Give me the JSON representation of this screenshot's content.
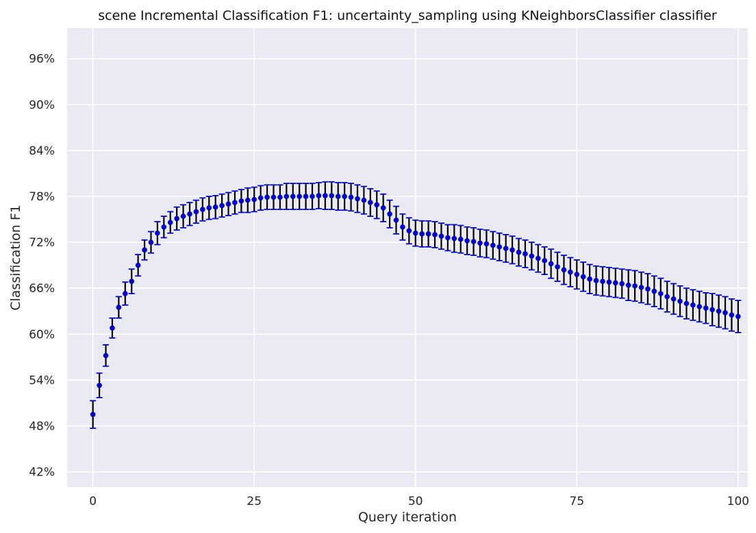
{
  "chart_data": {
    "type": "scatter",
    "title": "scene Incremental Classification F1: uncertainty_sampling using KNeighborsClassifier classifier",
    "xlabel": "Query iteration",
    "ylabel": "Classification F1",
    "xlim": [
      -4,
      101.5
    ],
    "ylim": [
      40,
      100
    ],
    "xticks": [
      0,
      25,
      50,
      75,
      100
    ],
    "xtick_labels": [
      "0",
      "25",
      "50",
      "75",
      "100"
    ],
    "yticks": [
      42,
      48,
      54,
      60,
      66,
      72,
      78,
      84,
      90,
      96
    ],
    "ytick_labels": [
      "42%",
      "48%",
      "54%",
      "60%",
      "66%",
      "72%",
      "78%",
      "84%",
      "90%",
      "96%"
    ],
    "grid": true,
    "background": "#eaeaf2",
    "colors": {
      "marker": "#0000cc",
      "error_line": "#000000",
      "cap": "#0000cc",
      "grid": "#ffffff"
    },
    "series": [
      {
        "x": [
          0,
          1,
          2,
          3,
          4,
          5,
          6,
          7,
          8,
          9,
          10,
          11,
          12,
          13,
          14,
          15,
          16,
          17,
          18,
          19,
          20,
          21,
          22,
          23,
          24,
          25,
          26,
          27,
          28,
          29,
          30,
          31,
          32,
          33,
          34,
          35,
          36,
          37,
          38,
          39,
          40,
          41,
          42,
          43,
          44,
          45,
          46,
          47,
          48,
          49,
          50,
          51,
          52,
          53,
          54,
          55,
          56,
          57,
          58,
          59,
          60,
          61,
          62,
          63,
          64,
          65,
          66,
          67,
          68,
          69,
          70,
          71,
          72,
          73,
          74,
          75,
          76,
          77,
          78,
          79,
          80,
          81,
          82,
          83,
          84,
          85,
          86,
          87,
          88,
          89,
          90,
          91,
          92,
          93,
          94,
          95,
          96,
          97,
          98,
          99,
          100
        ],
        "y": [
          49.5,
          53.3,
          57.2,
          60.8,
          63.5,
          65.3,
          66.9,
          69.0,
          71.0,
          72.0,
          73.2,
          74.0,
          74.6,
          75.1,
          75.4,
          75.7,
          76.0,
          76.3,
          76.5,
          76.6,
          76.8,
          77.0,
          77.2,
          77.4,
          77.5,
          77.6,
          77.8,
          77.9,
          77.9,
          77.9,
          78.0,
          78.0,
          78.0,
          78.0,
          78.0,
          78.1,
          78.1,
          78.1,
          78.0,
          78.0,
          77.9,
          77.7,
          77.5,
          77.2,
          76.9,
          76.5,
          75.7,
          74.9,
          74.0,
          73.5,
          73.2,
          73.1,
          73.1,
          73.0,
          72.8,
          72.6,
          72.5,
          72.4,
          72.2,
          72.1,
          71.9,
          71.8,
          71.6,
          71.4,
          71.2,
          71.0,
          70.7,
          70.5,
          70.2,
          69.9,
          69.6,
          69.2,
          68.8,
          68.4,
          68.1,
          67.8,
          67.5,
          67.2,
          67.0,
          66.9,
          66.8,
          66.7,
          66.6,
          66.4,
          66.3,
          66.1,
          65.9,
          65.6,
          65.3,
          64.9,
          64.6,
          64.3,
          64.0,
          63.8,
          63.6,
          63.4,
          63.2,
          63.0,
          62.8,
          62.5,
          62.3
        ],
        "yerr": [
          1.8,
          1.6,
          1.4,
          1.3,
          1.4,
          1.5,
          1.6,
          1.4,
          1.3,
          1.4,
          1.5,
          1.4,
          1.4,
          1.5,
          1.5,
          1.5,
          1.5,
          1.5,
          1.5,
          1.5,
          1.5,
          1.5,
          1.5,
          1.5,
          1.6,
          1.6,
          1.6,
          1.6,
          1.6,
          1.6,
          1.7,
          1.7,
          1.7,
          1.7,
          1.7,
          1.7,
          1.8,
          1.8,
          1.8,
          1.8,
          1.8,
          1.8,
          1.8,
          1.8,
          1.8,
          1.8,
          1.8,
          1.8,
          1.7,
          1.7,
          1.7,
          1.7,
          1.7,
          1.7,
          1.7,
          1.7,
          1.8,
          1.8,
          1.8,
          1.8,
          1.8,
          1.8,
          1.8,
          1.8,
          1.8,
          1.8,
          1.8,
          1.8,
          1.8,
          1.8,
          1.8,
          1.9,
          1.9,
          1.9,
          1.9,
          1.9,
          1.9,
          1.9,
          1.9,
          1.9,
          1.9,
          1.9,
          1.9,
          2.0,
          2.0,
          2.0,
          2.0,
          2.0,
          2.0,
          2.0,
          2.0,
          2.0,
          2.0,
          2.0,
          2.0,
          2.0,
          2.1,
          2.1,
          2.1,
          2.1,
          2.1
        ]
      }
    ]
  }
}
